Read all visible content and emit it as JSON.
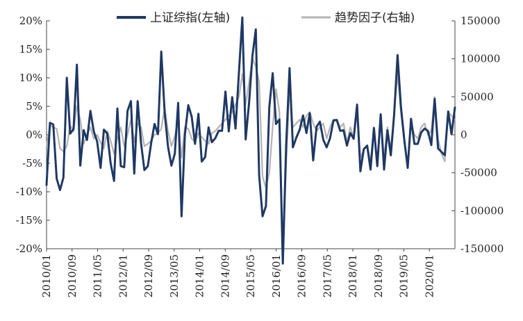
{
  "chart_data": {
    "type": "line",
    "title": "",
    "xlabel": "",
    "ylabel_left": "",
    "ylabel_right": "",
    "x_ticks": [
      "2010/01",
      "2010/09",
      "2011/05",
      "2012/01",
      "2012/09",
      "2013/05",
      "2014/01",
      "2014/09",
      "2015/05",
      "2016/01",
      "2016/09",
      "2017/05",
      "2018/01",
      "2018/09",
      "2019/05",
      "2020/01"
    ],
    "x_range": [
      "2010/01",
      "2020/09"
    ],
    "y_left": {
      "range": [
        -20,
        20
      ],
      "ticks": [
        "-20%",
        "-15%",
        "-10%",
        "-5%",
        "0%",
        "5%",
        "10%",
        "15%",
        "20%"
      ]
    },
    "y_right": {
      "range": [
        -150000,
        150000
      ],
      "ticks": [
        "-150000",
        "-100000",
        "-50000",
        "0",
        "50000",
        "100000",
        "150000"
      ]
    },
    "legend_position": "top",
    "grid": false,
    "series": [
      {
        "name": "上证综指(左轴)",
        "axis": "left",
        "color": "#1f3864",
        "values": [
          -8.8,
          2.1,
          1.8,
          -7.7,
          -9.7,
          -7.5,
          10.0,
          0.2,
          1.0,
          12.3,
          -5.4,
          0.8,
          -0.9,
          4.2,
          0.6,
          -1.2,
          -5.8,
          0.9,
          0.2,
          -5.0,
          -8.1,
          4.6,
          -5.5,
          -5.7,
          4.2,
          5.9,
          -6.8,
          5.9,
          -1.5,
          -6.2,
          -5.5,
          -1.5,
          1.9,
          0.1,
          14.6,
          3.9,
          -2.1,
          -5.4,
          -3.3,
          5.6,
          -14.3,
          0.0,
          5.2,
          3.2,
          -1.6,
          3.7,
          -4.7,
          -3.9,
          1.3,
          -1.3,
          -0.6,
          0.7,
          0.7,
          7.6,
          0.6,
          6.6,
          1.1,
          10.9,
          20.6,
          -0.8,
          5.6,
          13.8,
          18.5,
          -7.1,
          -14.3,
          -12.5,
          4.8,
          10.8,
          1.9,
          2.7,
          -22.6,
          -1.8,
          11.7,
          -2.2,
          -0.5,
          0.9,
          3.4,
          0.3,
          3.8,
          -4.5,
          1.4,
          2.3,
          -0.9,
          -2.2,
          -0.6,
          2.5,
          2.6,
          0.7,
          0.8,
          -1.9,
          0.3,
          -0.7,
          5.3,
          -6.4,
          -2.5,
          -1.9,
          -6.1,
          1.2,
          -5.5,
          3.6,
          -6.1,
          0.8,
          -3.6,
          3.6,
          14.0,
          5.0,
          -0.9,
          -5.8,
          2.8,
          -1.6,
          -1.6,
          0.4,
          1.1,
          0.7,
          -1.8,
          6.3,
          -2.4,
          -3.0,
          -3.6,
          4.1,
          0.1,
          4.8
        ]
      },
      {
        "name": "趋势因子(右轴)",
        "axis": "right",
        "color": "#b3b3b3",
        "values": [
          -15000,
          12000,
          10000,
          8000,
          -18000,
          -22000,
          -15000,
          12000,
          5000,
          38000,
          20000,
          -12000,
          0,
          10000,
          -5000,
          0,
          -10000,
          -18000,
          5000,
          -8000,
          -25000,
          -5000,
          10000,
          -15000,
          0,
          20000,
          -10000,
          15000,
          10000,
          -15000,
          -12000,
          -8000,
          0,
          2000,
          8000,
          35000,
          5000,
          -15000,
          -2000,
          22000,
          -30000,
          10000,
          8000,
          -5000,
          -10000,
          2000,
          -3000,
          -8000,
          -12000,
          2000,
          5000,
          10000,
          15000,
          20000,
          25000,
          30000,
          40000,
          50000,
          80000,
          40000,
          70000,
          100000,
          90000,
          70000,
          -55000,
          -70000,
          -50000,
          10000,
          60000,
          30000,
          -150000,
          -40000,
          60000,
          10000,
          15000,
          20000,
          10000,
          25000,
          30000,
          15000,
          5000,
          10000,
          15000,
          -5000,
          10000,
          20000,
          20000,
          10000,
          15000,
          -10000,
          10000,
          -5000,
          30000,
          -30000,
          -20000,
          -15000,
          -35000,
          10000,
          -40000,
          20000,
          -30000,
          10000,
          -20000,
          30000,
          80000,
          30000,
          -10000,
          -40000,
          15000,
          0,
          -5000,
          10000,
          15000,
          0,
          5000,
          50000,
          -5000,
          -25000,
          -35000,
          30000,
          25000,
          20000
        ]
      }
    ]
  }
}
